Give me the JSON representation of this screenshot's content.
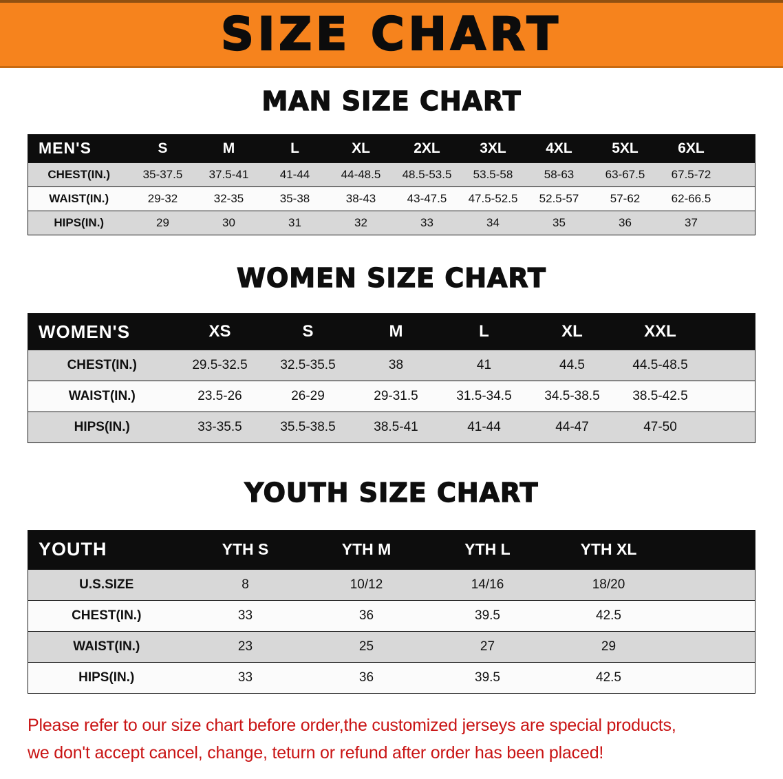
{
  "banner": {
    "title": "SIZE CHART",
    "bg_color": "#f6831d",
    "text_color": "#0c0c0c"
  },
  "sections": [
    {
      "heading": "MAN SIZE CHART",
      "table": {
        "header": [
          "MEN'S",
          "S",
          "M",
          "L",
          "XL",
          "2XL",
          "3XL",
          "4XL",
          "5XL",
          "6XL"
        ],
        "rows": [
          [
            "CHEST(IN.)",
            "35-37.5",
            "37.5-41",
            "41-44",
            "44-48.5",
            "48.5-53.5",
            "53.5-58",
            "58-63",
            "63-67.5",
            "67.5-72"
          ],
          [
            "WAIST(IN.)",
            "29-32",
            "32-35",
            "35-38",
            "38-43",
            "43-47.5",
            "47.5-52.5",
            "52.5-57",
            "57-62",
            "62-66.5"
          ],
          [
            "HIPS(IN.)",
            "29",
            "30",
            "31",
            "32",
            "33",
            "34",
            "35",
            "36",
            "37"
          ]
        ]
      }
    },
    {
      "heading": "WOMEN SIZE CHART",
      "table": {
        "header": [
          "WOMEN'S",
          "XS",
          "S",
          "M",
          "L",
          "XL",
          "XXL"
        ],
        "rows": [
          [
            "CHEST(IN.)",
            "29.5-32.5",
            "32.5-35.5",
            "38",
            "41",
            "44.5",
            "44.5-48.5"
          ],
          [
            "WAIST(IN.)",
            "23.5-26",
            "26-29",
            "29-31.5",
            "31.5-34.5",
            "34.5-38.5",
            "38.5-42.5"
          ],
          [
            "HIPS(IN.)",
            "33-35.5",
            "35.5-38.5",
            "38.5-41",
            "41-44",
            "44-47",
            "47-50"
          ]
        ]
      }
    },
    {
      "heading": "YOUTH SIZE CHART",
      "table": {
        "header": [
          "YOUTH",
          "YTH S",
          "YTH M",
          "YTH L",
          "YTH XL"
        ],
        "rows": [
          [
            "U.S.SIZE",
            "8",
            "10/12",
            "14/16",
            "18/20"
          ],
          [
            "CHEST(IN.)",
            "33",
            "36",
            "39.5",
            "42.5"
          ],
          [
            "WAIST(IN.)",
            "23",
            "25",
            "27",
            "29"
          ],
          [
            "HIPS(IN.)",
            "33",
            "36",
            "39.5",
            "42.5"
          ]
        ]
      }
    }
  ],
  "disclaimer": {
    "line1": "Please refer to our size chart before order,the customized jerseys are special products,",
    "line2": "we don't accept cancel, change, teturn or refund after order has been placed!",
    "color": "#c91414"
  }
}
